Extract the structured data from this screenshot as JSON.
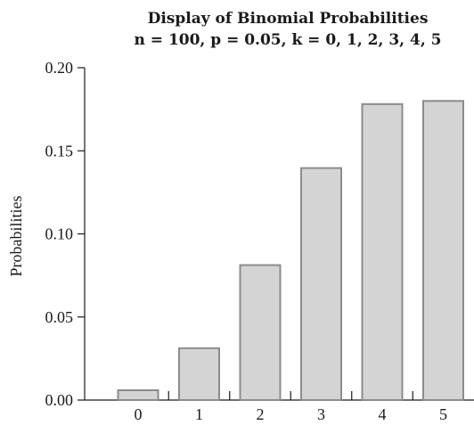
{
  "chart_data": {
    "type": "bar",
    "title": "Display of Binomial Probabilities",
    "subtitle": "n = 100, p = 0.05, k = 0, 1, 2, 3, 4, 5",
    "xlabel": "",
    "ylabel": "Probabilities",
    "categories": [
      "0",
      "1",
      "2",
      "3",
      "4",
      "5"
    ],
    "values": [
      0.0059,
      0.0312,
      0.0812,
      0.1396,
      0.1781,
      0.18
    ],
    "ylim": [
      0,
      0.2
    ],
    "yticks": [
      "0.00",
      "0.05",
      "0.10",
      "0.15",
      "0.20"
    ],
    "grid": false,
    "legend": "none",
    "colors": {
      "bar_fill": "#d4d4d4",
      "bar_stroke": "#8c8c8c",
      "axis": "#1a1a1a"
    }
  }
}
